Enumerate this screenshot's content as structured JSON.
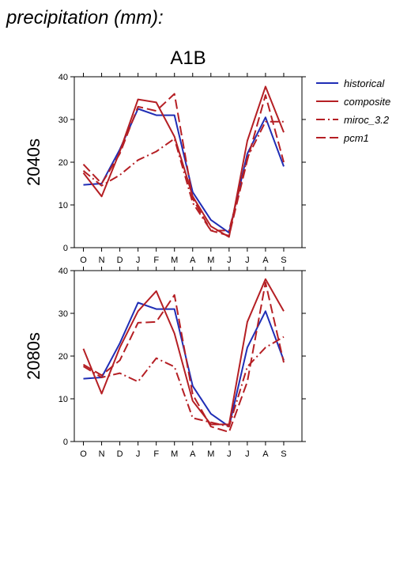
{
  "page_title": "precipitation (mm):",
  "colors": {
    "historical": "#1f2db5",
    "projection": "#b51f24",
    "axis": "#000000"
  },
  "legend": [
    {
      "name": "historical",
      "color": "#1f2db5",
      "dash": "solid"
    },
    {
      "name": "composite",
      "color": "#b51f24",
      "dash": "solid"
    },
    {
      "name": "miroc_3.2",
      "color": "#b51f24",
      "dash": "dashdot"
    },
    {
      "name": "pcm1",
      "color": "#b51f24",
      "dash": "dashed"
    }
  ],
  "chart_data": [
    {
      "type": "line",
      "title": "A1B",
      "row_label": "2040s",
      "categories": [
        "O",
        "N",
        "D",
        "J",
        "F",
        "M",
        "A",
        "M",
        "J",
        "J",
        "A",
        "S"
      ],
      "ylim": [
        0,
        40
      ],
      "yticks": [
        0,
        10,
        20,
        30,
        40
      ],
      "series": [
        {
          "name": "historical",
          "values": [
            14.7,
            15,
            23,
            32.5,
            31,
            31,
            13,
            6.5,
            3.5,
            22,
            30.5,
            19
          ]
        },
        {
          "name": "composite",
          "values": [
            17.5,
            12,
            22.5,
            34.7,
            34,
            26,
            12,
            5,
            2.5,
            25,
            37.7,
            27
          ]
        },
        {
          "name": "miroc_3.2",
          "values": [
            18,
            14.5,
            17,
            20.5,
            22.5,
            25.5,
            10.5,
            4,
            4,
            21,
            29.5,
            29.5
          ]
        },
        {
          "name": "pcm1",
          "values": [
            19.5,
            15,
            22,
            33,
            32,
            36,
            11.5,
            4,
            2.8,
            20.5,
            35.7,
            20
          ]
        }
      ]
    },
    {
      "type": "line",
      "row_label": "2080s",
      "categories": [
        "O",
        "N",
        "D",
        "J",
        "F",
        "M",
        "A",
        "M",
        "J",
        "J",
        "A",
        "S"
      ],
      "ylim": [
        0,
        40
      ],
      "yticks": [
        0,
        10,
        20,
        30,
        40
      ],
      "series": [
        {
          "name": "historical",
          "values": [
            14.7,
            15,
            23,
            32.5,
            31,
            31,
            13,
            6.5,
            3.5,
            22,
            30.5,
            19
          ]
        },
        {
          "name": "composite",
          "values": [
            21.7,
            11.2,
            22,
            30.5,
            35.2,
            25.3,
            9.5,
            4,
            4,
            28,
            38,
            30.5
          ]
        },
        {
          "name": "miroc_3.2",
          "values": [
            17.6,
            15,
            16,
            14,
            19.5,
            17.5,
            5.5,
            4.5,
            3.5,
            17.5,
            22,
            24.5
          ]
        },
        {
          "name": "pcm1",
          "values": [
            18,
            15.5,
            19,
            27.8,
            28,
            34.3,
            11,
            3.5,
            2.2,
            14,
            37.2,
            18.5
          ]
        }
      ]
    }
  ]
}
